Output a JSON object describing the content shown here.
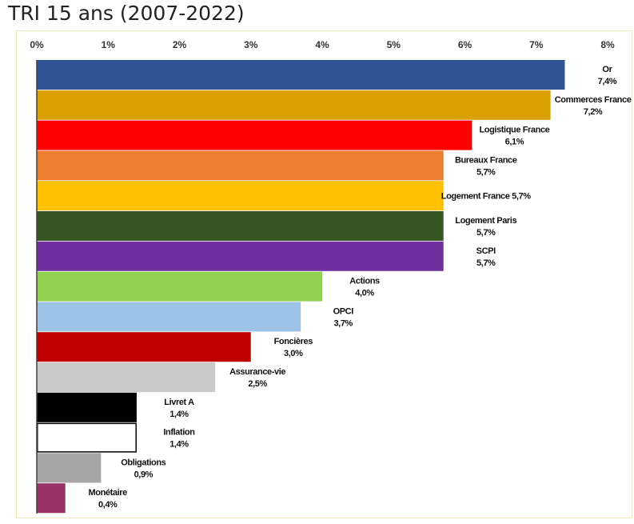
{
  "chart_data": {
    "type": "bar",
    "orientation": "horizontal",
    "title": "TRI 15 ans (2007-2022)",
    "xlabel": "",
    "ylabel": "",
    "xlim": [
      0,
      8
    ],
    "ticks": [
      {
        "value": 0,
        "label": "0%"
      },
      {
        "value": 1,
        "label": "1%"
      },
      {
        "value": 2,
        "label": "2%"
      },
      {
        "value": 3,
        "label": "3%"
      },
      {
        "value": 4,
        "label": "4%"
      },
      {
        "value": 5,
        "label": "5%"
      },
      {
        "value": 6,
        "label": "6%"
      },
      {
        "value": 7,
        "label": "7%"
      },
      {
        "value": 8,
        "label": "8%"
      }
    ],
    "grid": false,
    "legend": "none",
    "bars": [
      {
        "name": "Or",
        "value": 7.4,
        "value_label": "7,4%",
        "label_lines": [
          "Or",
          "7,4%"
        ],
        "color": "#2f5597"
      },
      {
        "name": "Commerces France",
        "value": 7.2,
        "value_label": "7,2%",
        "label_lines": [
          "Commerces France",
          "7,2%"
        ],
        "color": "#d9a000"
      },
      {
        "name": "Logistique France",
        "value": 6.1,
        "value_label": "6,1%",
        "label_lines": [
          "Logistique France",
          "6,1%"
        ],
        "color": "#ff0000"
      },
      {
        "name": "Bureaux France",
        "value": 5.7,
        "value_label": "5,7%",
        "label_lines": [
          "Bureaux France",
          "5,7%"
        ],
        "color": "#ed7d31"
      },
      {
        "name": "Logement France",
        "value": 5.7,
        "value_label": "5,7%",
        "label_lines": [
          "Logement France 5,7%"
        ],
        "color": "#ffc000"
      },
      {
        "name": "Logement Paris",
        "value": 5.7,
        "value_label": "5,7%",
        "label_lines": [
          "Logement Paris",
          "5,7%"
        ],
        "color": "#375623"
      },
      {
        "name": "SCPI",
        "value": 5.7,
        "value_label": "5,7%",
        "label_lines": [
          "SCPI",
          "5,7%"
        ],
        "color": "#7030a0"
      },
      {
        "name": "Actions",
        "value": 4.0,
        "value_label": "4,0%",
        "label_lines": [
          "Actions",
          "4,0%"
        ],
        "color": "#92d050"
      },
      {
        "name": "OPCI",
        "value": 3.7,
        "value_label": "3,7%",
        "label_lines": [
          "OPCI",
          "3,7%"
        ],
        "color": "#9dc3e6"
      },
      {
        "name": "Foncières",
        "value": 3.0,
        "value_label": "3,0%",
        "label_lines": [
          "Foncières",
          "3,0%"
        ],
        "color": "#c00000"
      },
      {
        "name": "Assurance-vie",
        "value": 2.5,
        "value_label": "2,5%",
        "label_lines": [
          "Assurance-vie",
          "2,5%"
        ],
        "color": "#c9c9c9"
      },
      {
        "name": "Livret A",
        "value": 1.4,
        "value_label": "1,4%",
        "label_lines": [
          "Livret A",
          "1,4%"
        ],
        "color": "#000000"
      },
      {
        "name": "Inflation",
        "value": 1.4,
        "value_label": "1,4%",
        "label_lines": [
          "Inflation",
          "1,4%"
        ],
        "color": "#ffffff"
      },
      {
        "name": "Obligations",
        "value": 0.9,
        "value_label": "0,9%",
        "label_lines": [
          "Obligations",
          "0,9%"
        ],
        "color": "#a6a6a6"
      },
      {
        "name": "Monétaire",
        "value": 0.4,
        "value_label": "0,4%",
        "label_lines": [
          "Monétaire",
          "0,4%"
        ],
        "color": "#993366"
      }
    ]
  }
}
